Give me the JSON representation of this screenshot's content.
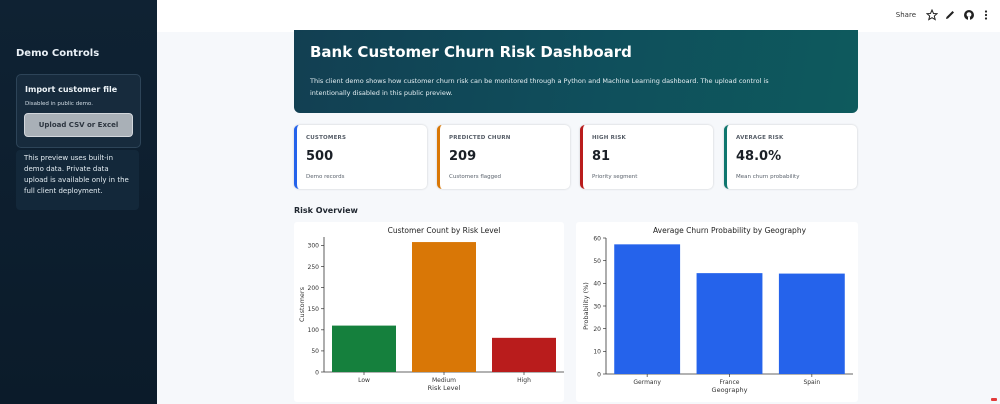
{
  "sidebar": {
    "title": "Demo Controls",
    "import_card": {
      "title": "Import customer file",
      "subtitle": "Disabled in public demo.",
      "button_label": "Upload CSV or Excel"
    },
    "note": "This preview uses built-in demo data. Private data upload is available only in the full client deployment."
  },
  "topbar": {
    "share_label": "Share",
    "icons": [
      "star-icon",
      "edit-icon",
      "github-icon",
      "more-vertical-icon"
    ]
  },
  "hero": {
    "title": "Bank Customer Churn Risk Dashboard",
    "description": "This client demo shows how customer churn risk can be monitored through a Python and Machine Learning dashboard. The upload control is intentionally disabled in this public preview."
  },
  "metrics": [
    {
      "label": "CUSTOMERS",
      "value": "500",
      "note": "Demo records",
      "accent": "#2563eb"
    },
    {
      "label": "PREDICTED CHURN",
      "value": "209",
      "note": "Customers flagged",
      "accent": "#d97706"
    },
    {
      "label": "HIGH RISK",
      "value": "81",
      "note": "Priority segment",
      "accent": "#b91c1c"
    },
    {
      "label": "AVERAGE RISK",
      "value": "48.0%",
      "note": "Mean churn probability",
      "accent": "#0f766e"
    }
  ],
  "section": {
    "title": "Risk Overview"
  },
  "chart_data": [
    {
      "type": "bar",
      "title": "Customer Count by Risk Level",
      "xlabel": "Risk Level",
      "ylabel": "Customers",
      "categories": [
        "Low",
        "Medium",
        "High"
      ],
      "values": [
        110,
        308,
        81
      ],
      "colors": [
        "#15803d",
        "#d97706",
        "#b91c1c"
      ],
      "ylim": [
        0,
        320
      ],
      "yticks": [
        0,
        50,
        100,
        150,
        200,
        250,
        300
      ],
      "grid": false
    },
    {
      "type": "bar",
      "title": "Average Churn Probability by Geography",
      "xlabel": "Geography",
      "ylabel": "Probability (%)",
      "categories": [
        "Germany",
        "France",
        "Spain"
      ],
      "values": [
        57.2,
        44.5,
        44.3
      ],
      "colors": [
        "#2563eb",
        "#2563eb",
        "#2563eb"
      ],
      "ylim": [
        0,
        60
      ],
      "yticks": [
        0,
        10,
        20,
        30,
        40,
        50,
        60
      ],
      "grid": false
    }
  ]
}
